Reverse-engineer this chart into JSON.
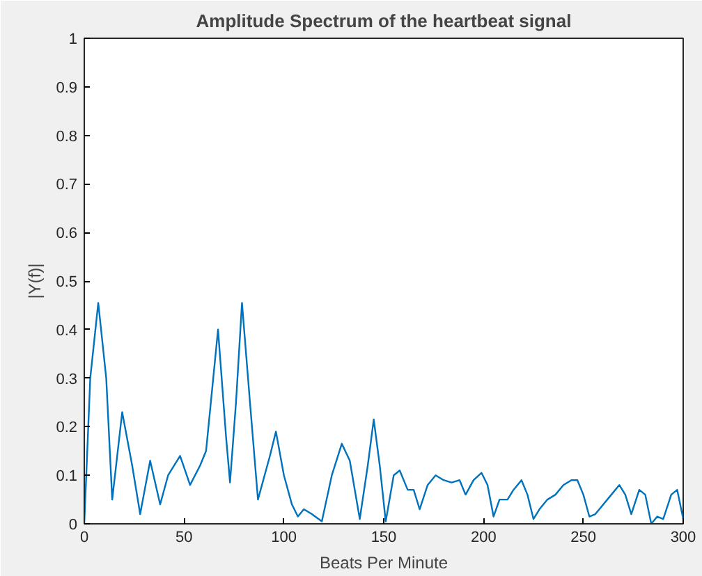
{
  "chart_data": {
    "type": "line",
    "title": "Amplitude Spectrum of the heartbeat signal",
    "xlabel": "Beats Per Minute",
    "ylabel": "|Y(f)|",
    "x": [
      0,
      3,
      7,
      11,
      14,
      19,
      24,
      28,
      33,
      38,
      42,
      48,
      53,
      58,
      61,
      67,
      71,
      73,
      76,
      79,
      83,
      87,
      93,
      96,
      100,
      104,
      107,
      110,
      114,
      119,
      124,
      129,
      133,
      138,
      142,
      145,
      148,
      151,
      155,
      158,
      162,
      165,
      168,
      172,
      176,
      180,
      184,
      188,
      191,
      195,
      199,
      202,
      205,
      208,
      212,
      215,
      219,
      222,
      225,
      228,
      232,
      236,
      240,
      244,
      247,
      250,
      253,
      256,
      260,
      264,
      268,
      271,
      274,
      278,
      281,
      284,
      287,
      290,
      294,
      297,
      300
    ],
    "series": [
      {
        "color": "#0072bd",
        "values": [
          0,
          0.3,
          0.455,
          0.3,
          0.05,
          0.23,
          0.12,
          0.02,
          0.13,
          0.04,
          0.1,
          0.14,
          0.08,
          0.12,
          0.15,
          0.4,
          0.18,
          0.085,
          0.25,
          0.455,
          0.25,
          0.05,
          0.14,
          0.19,
          0.1,
          0.04,
          0.015,
          0.03,
          0.02,
          0.005,
          0.1,
          0.165,
          0.13,
          0.01,
          0.12,
          0.215,
          0.12,
          0.005,
          0.1,
          0.11,
          0.07,
          0.07,
          0.03,
          0.08,
          0.1,
          0.09,
          0.085,
          0.09,
          0.06,
          0.09,
          0.105,
          0.08,
          0.015,
          0.05,
          0.05,
          0.07,
          0.09,
          0.06,
          0.01,
          0.03,
          0.05,
          0.06,
          0.08,
          0.09,
          0.09,
          0.06,
          0.015,
          0.02,
          0.04,
          0.06,
          0.08,
          0.06,
          0.02,
          0.07,
          0.06,
          0.0,
          0.015,
          0.01,
          0.06,
          0.07,
          0.01
        ]
      }
    ],
    "xlim": [
      0,
      300
    ],
    "ylim": [
      0,
      1
    ],
    "xticks": [
      0,
      50,
      100,
      150,
      200,
      250,
      300
    ],
    "yticks": [
      0,
      0.1,
      0.2,
      0.3,
      0.4,
      0.5,
      0.6,
      0.7,
      0.8,
      0.9,
      1
    ],
    "marker": "none",
    "line_style": "solid"
  }
}
